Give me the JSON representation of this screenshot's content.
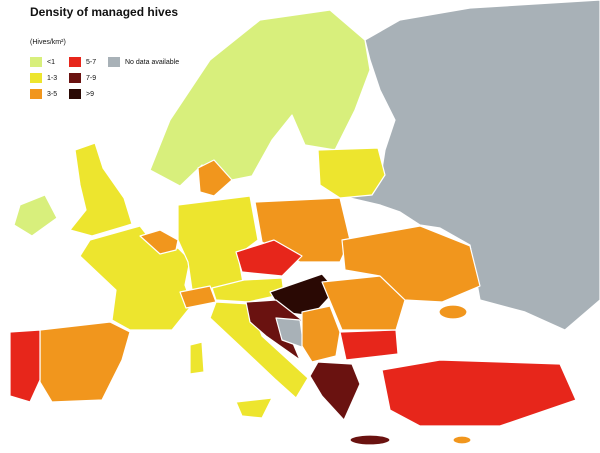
{
  "title": "Density of managed hives",
  "unit": "(Hives/km²)",
  "legend": {
    "items": [
      {
        "label": "<1",
        "color": "#d8ef7c"
      },
      {
        "label": "1-3",
        "color": "#ede52e"
      },
      {
        "label": "3-5",
        "color": "#f1961d"
      },
      {
        "label": "5-7",
        "color": "#e7261b"
      },
      {
        "label": "7-9",
        "color": "#6a1210"
      },
      {
        "label": ">9",
        "color": "#2a0904"
      },
      {
        "label": "No data available",
        "color": "#a8b1b7"
      }
    ]
  }
}
